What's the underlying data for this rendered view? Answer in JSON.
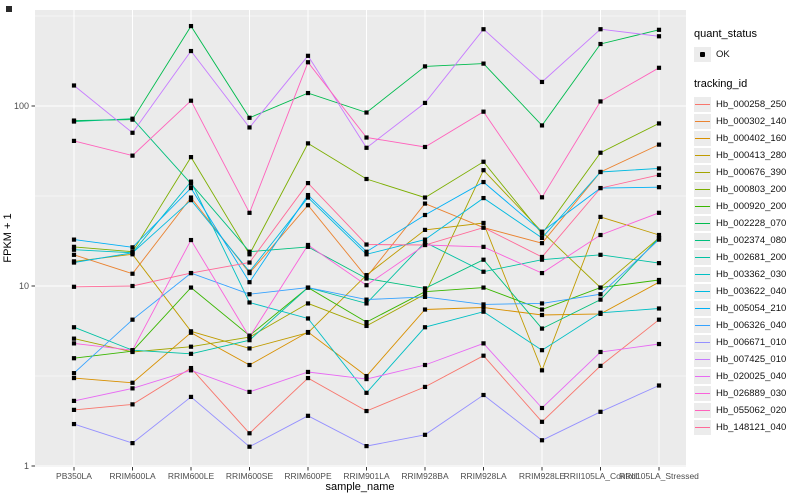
{
  "figure": {
    "background": "#FFFFFF",
    "panel_background": "#EBEBEB",
    "grid_color": "#FFFFFF",
    "tick_color": "#333333",
    "axis_text_color": "#4D4D4D",
    "point_color": "#000000",
    "legend_key_background": "#ECECEC"
  },
  "axes": {
    "x_title": "sample_name",
    "y_title": "FPKM + 1"
  },
  "legend": {
    "quant_status_title": "quant_status",
    "quant_status_items": [
      {
        "label": "OK",
        "marker": "black-point"
      }
    ],
    "tracking_id_title": "tracking_id"
  },
  "chart_data": {
    "type": "line",
    "title": "",
    "xlabel": "sample_name",
    "ylabel": "FPKM + 1",
    "grid": true,
    "legend_position": "right",
    "point_marker": "small black square on every vertex",
    "x_categories": [
      "PB350LA",
      "RRIM600LA",
      "RRIM600LE",
      "RRIM600SE",
      "RRIM600PE",
      "RRIM901LA",
      "RRIM928BA",
      "RRIM928LA",
      "RRIM928LE",
      "RRII105LA_Control",
      "RRII105LA_Stressed"
    ],
    "y_axis": {
      "scale": "log10",
      "ticks": [
        1,
        10,
        100
      ],
      "tick_labels": [
        "1",
        "10",
        "100"
      ],
      "minor_breaks": [
        3.1623,
        31.623,
        316.23
      ],
      "range": [
        1,
        341
      ]
    },
    "series": [
      {
        "name": "Hb_000258_250",
        "color": "#F8766D",
        "values": [
          2.05,
          2.2,
          3.5,
          1.52,
          3.08,
          2.02,
          2.75,
          4.1,
          1.76,
          3.6,
          6.5
        ]
      },
      {
        "name": "Hb_000302_140",
        "color": "#EA8331",
        "values": [
          14.9,
          11.7,
          31,
          11.8,
          28.1,
          11.2,
          28.7,
          21.1,
          17.3,
          43,
          61
        ]
      },
      {
        "name": "Hb_000402_160",
        "color": "#D89000",
        "values": [
          3.08,
          2.9,
          5.5,
          3.64,
          5.55,
          3.16,
          7.4,
          7.6,
          6.9,
          7.0,
          10.5
        ]
      },
      {
        "name": "Hb_000413_280",
        "color": "#C09B00",
        "values": [
          13.7,
          15.0,
          5.6,
          4.5,
          5.5,
          11.5,
          20.5,
          22.4,
          3.4,
          24.2,
          19.2
        ]
      },
      {
        "name": "Hb_000676_390",
        "color": "#A3A500",
        "values": [
          5.1,
          4.3,
          4.6,
          5.2,
          8.0,
          6.0,
          9.0,
          44,
          20,
          9.8,
          18.5
        ]
      },
      {
        "name": "Hb_000803_200",
        "color": "#7CAE00",
        "values": [
          16.5,
          15.5,
          52,
          15,
          62,
          39.3,
          31,
          49,
          19.5,
          55,
          80
        ]
      },
      {
        "name": "Hb_000920_200",
        "color": "#39B600",
        "values": [
          3.97,
          4.35,
          9.8,
          5.3,
          9.8,
          6.3,
          9.3,
          9.8,
          7.4,
          9.8,
          10.8
        ]
      },
      {
        "name": "Hb_002228_070",
        "color": "#00BB4E",
        "values": [
          83,
          84,
          278,
          86,
          118,
          92,
          166,
          172,
          78,
          221,
          265
        ]
      },
      {
        "name": "Hb_002374_080",
        "color": "#00BF7D",
        "values": [
          82,
          85,
          37,
          15.5,
          16.5,
          11,
          9.7,
          14,
          5.8,
          8.4,
          18.5
        ]
      },
      {
        "name": "Hb_002681_200",
        "color": "#00C1A3",
        "values": [
          5.9,
          4.4,
          4.2,
          5.0,
          9.8,
          8.0,
          17.5,
          12,
          14.0,
          14.9,
          13.4
        ]
      },
      {
        "name": "Hb_003362_030",
        "color": "#00BFC4",
        "values": [
          15.9,
          15.3,
          38,
          8.1,
          6.6,
          2.55,
          5.9,
          7.2,
          4.4,
          7.1,
          7.5
        ]
      },
      {
        "name": "Hb_003622_040",
        "color": "#00BAE0",
        "values": [
          13.5,
          15.3,
          30,
          12,
          31,
          15,
          18.1,
          30.8,
          18.5,
          43,
          45
        ]
      },
      {
        "name": "Hb_005054_210",
        "color": "#00B0F6",
        "values": [
          18.1,
          16.4,
          35,
          10.5,
          32,
          15.5,
          24.8,
          37.8,
          20,
          35,
          35.4
        ]
      },
      {
        "name": "Hb_006326_040",
        "color": "#35A2FF",
        "values": [
          3.28,
          6.5,
          11.8,
          9.0,
          9.8,
          8.4,
          8.7,
          7.9,
          8.0,
          9.0,
          18.1
        ]
      },
      {
        "name": "Hb_006671_010",
        "color": "#9590FF",
        "values": [
          1.71,
          1.34,
          2.42,
          1.28,
          1.9,
          1.29,
          1.49,
          2.48,
          1.39,
          2.0,
          2.8
        ]
      },
      {
        "name": "Hb_007425_010",
        "color": "#C77CFF",
        "values": [
          130,
          71,
          202,
          76,
          190,
          58.6,
          104,
          267,
          136,
          267,
          244
        ]
      },
      {
        "name": "Hb_020025_040",
        "color": "#E76BF3",
        "values": [
          2.3,
          2.7,
          3.4,
          2.58,
          3.33,
          3.04,
          3.64,
          4.8,
          2.1,
          4.3,
          4.76
        ]
      },
      {
        "name": "Hb_026889_030",
        "color": "#FA62DB",
        "values": [
          4.8,
          4.4,
          18,
          5.2,
          16.9,
          10.1,
          16.9,
          16.5,
          11.8,
          19.2,
          25.5
        ]
      },
      {
        "name": "Hb_055062_020",
        "color": "#FF62BC",
        "values": [
          64,
          53,
          107,
          25.5,
          175,
          66.8,
          59.2,
          93,
          31.1,
          106,
          163
        ]
      },
      {
        "name": "Hb_148121_040",
        "color": "#FF6A98",
        "values": [
          9.9,
          10.0,
          11.8,
          13.5,
          37.3,
          17,
          16.9,
          21.1,
          14.5,
          35,
          41.4
        ]
      }
    ]
  }
}
